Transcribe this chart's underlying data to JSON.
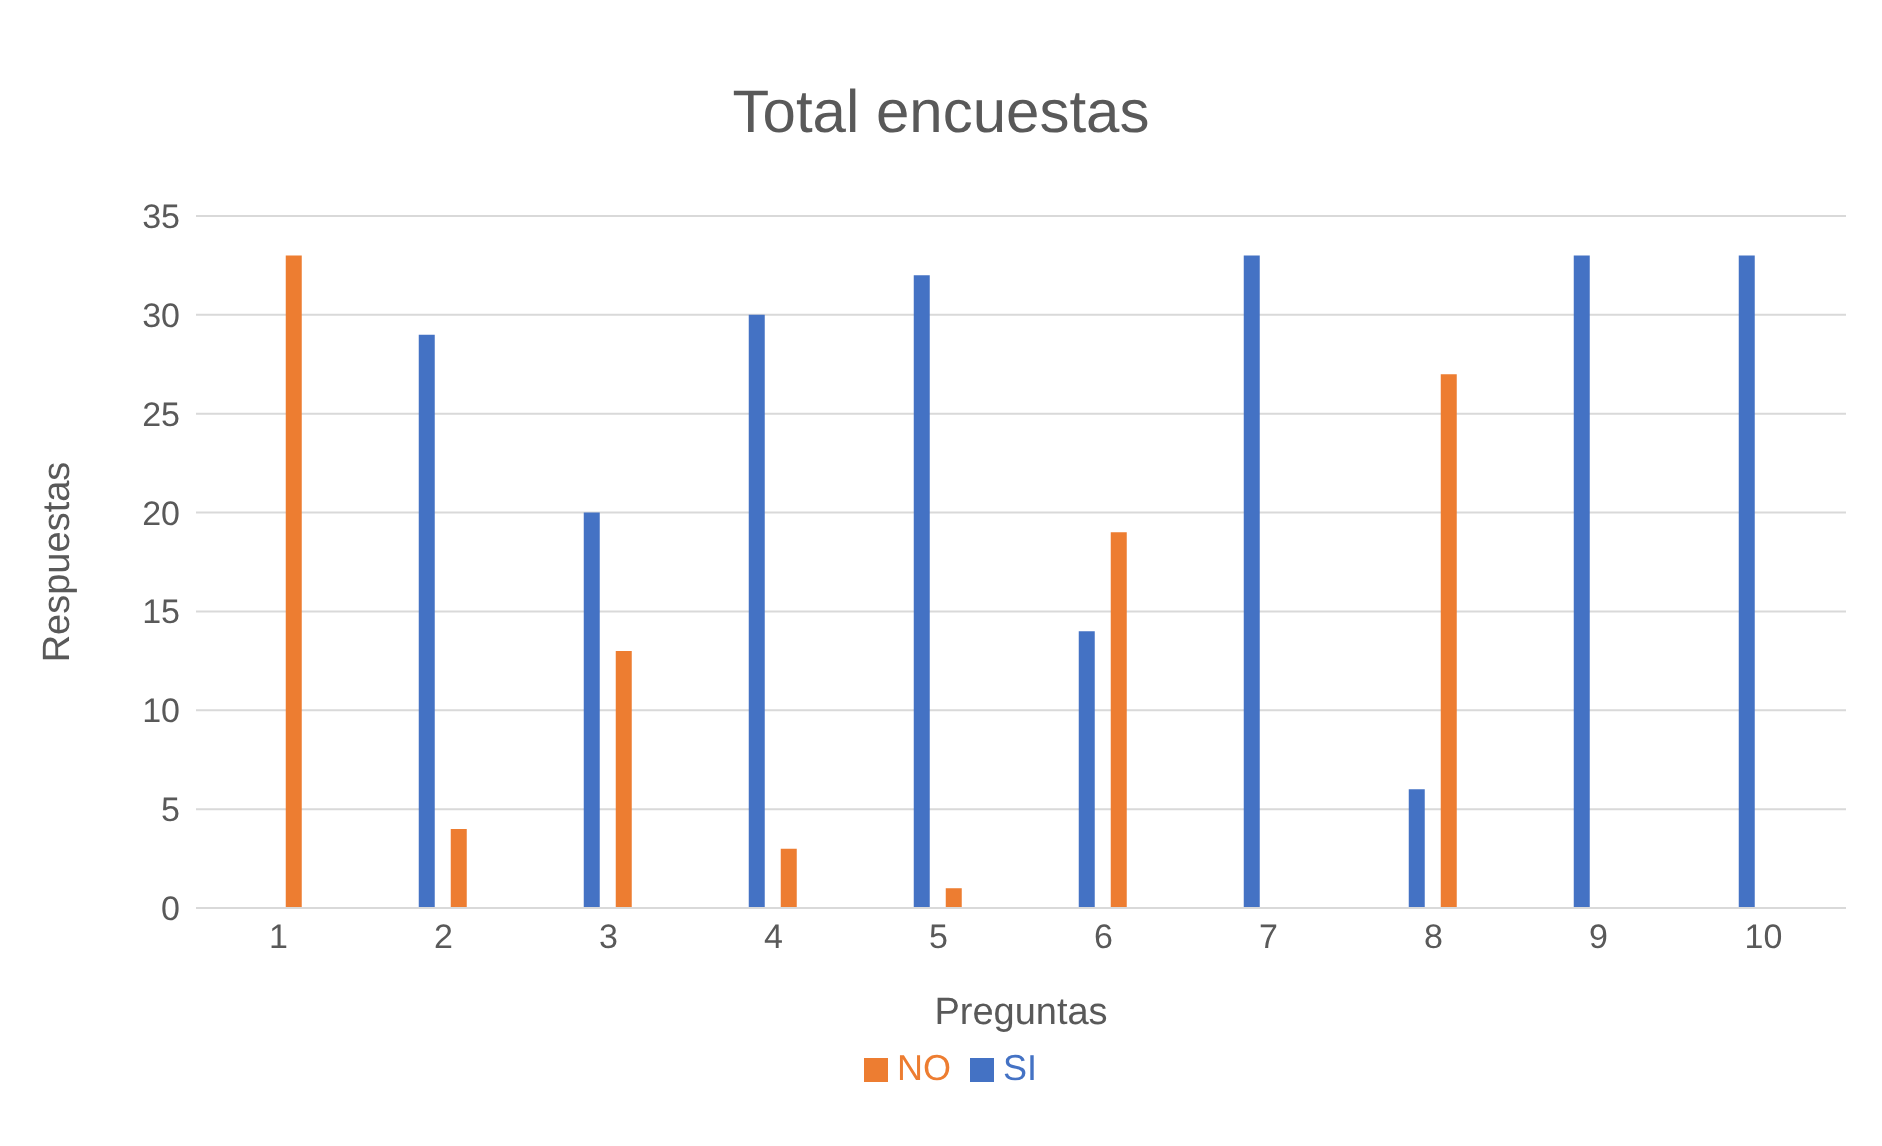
{
  "chart_data": {
    "type": "bar",
    "title": "Total encuestas",
    "xlabel": "Preguntas",
    "ylabel": "Respuestas",
    "categories": [
      "1",
      "2",
      "3",
      "4",
      "5",
      "6",
      "7",
      "8",
      "9",
      "10"
    ],
    "series": [
      {
        "name": "SI",
        "color": "#4472c4",
        "values": [
          0,
          29,
          20,
          30,
          32,
          14,
          33,
          6,
          33,
          33
        ]
      },
      {
        "name": "NO",
        "color": "#ed7d31",
        "values": [
          33,
          4,
          13,
          3,
          1,
          19,
          0,
          27,
          0,
          0
        ]
      }
    ],
    "ylim": [
      0,
      35
    ],
    "yticks": [
      0,
      5,
      10,
      15,
      20,
      25,
      30,
      35
    ],
    "grid": "y",
    "legend": "bottom"
  }
}
